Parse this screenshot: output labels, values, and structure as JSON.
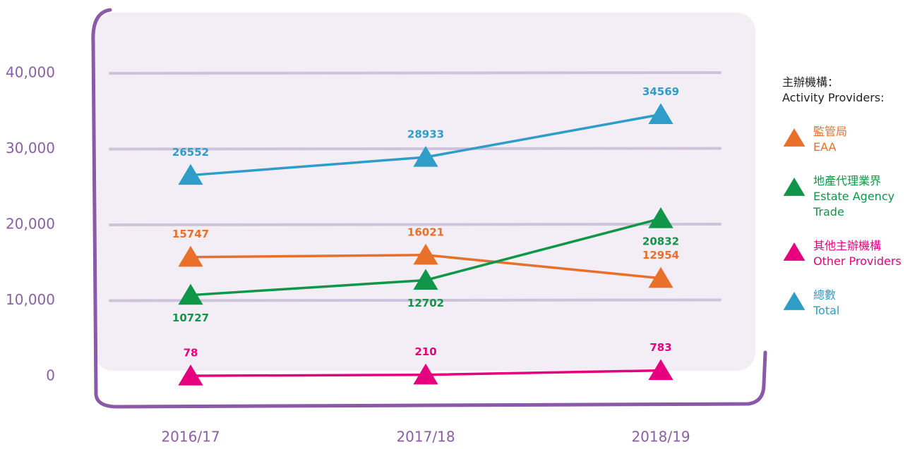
{
  "chart_data": {
    "type": "line",
    "categories": [
      "2016/17",
      "2017/18",
      "2018/19"
    ],
    "legend_title": "主辦機構：",
    "legend_title_en": "Activity Providers:",
    "legend_position": "right",
    "grid": true,
    "ylim": [
      0,
      40000
    ],
    "yticks": [
      0,
      {
        "value": 10000,
        "label": "10,000"
      },
      {
        "value": 20000,
        "label": "20,000"
      },
      {
        "value": 30000,
        "label": "30,000"
      },
      {
        "value": 40000,
        "label": "40,000"
      }
    ],
    "series": [
      {
        "name": "監管局",
        "name_en": "EAA",
        "color": "#e8702a",
        "values": [
          15747,
          16021,
          12954
        ]
      },
      {
        "name": "地產代理業界",
        "name_en": "Estate Agency Trade",
        "color": "#109648",
        "values": [
          10727,
          12702,
          20832
        ]
      },
      {
        "name": "其他主辦機構",
        "name_en": "Other Providers",
        "color": "#e6007e",
        "values": [
          78,
          210,
          783
        ]
      },
      {
        "name": "總數",
        "name_en": "Total",
        "color": "#2e9dc8",
        "values": [
          26552,
          28933,
          34569
        ]
      }
    ]
  }
}
